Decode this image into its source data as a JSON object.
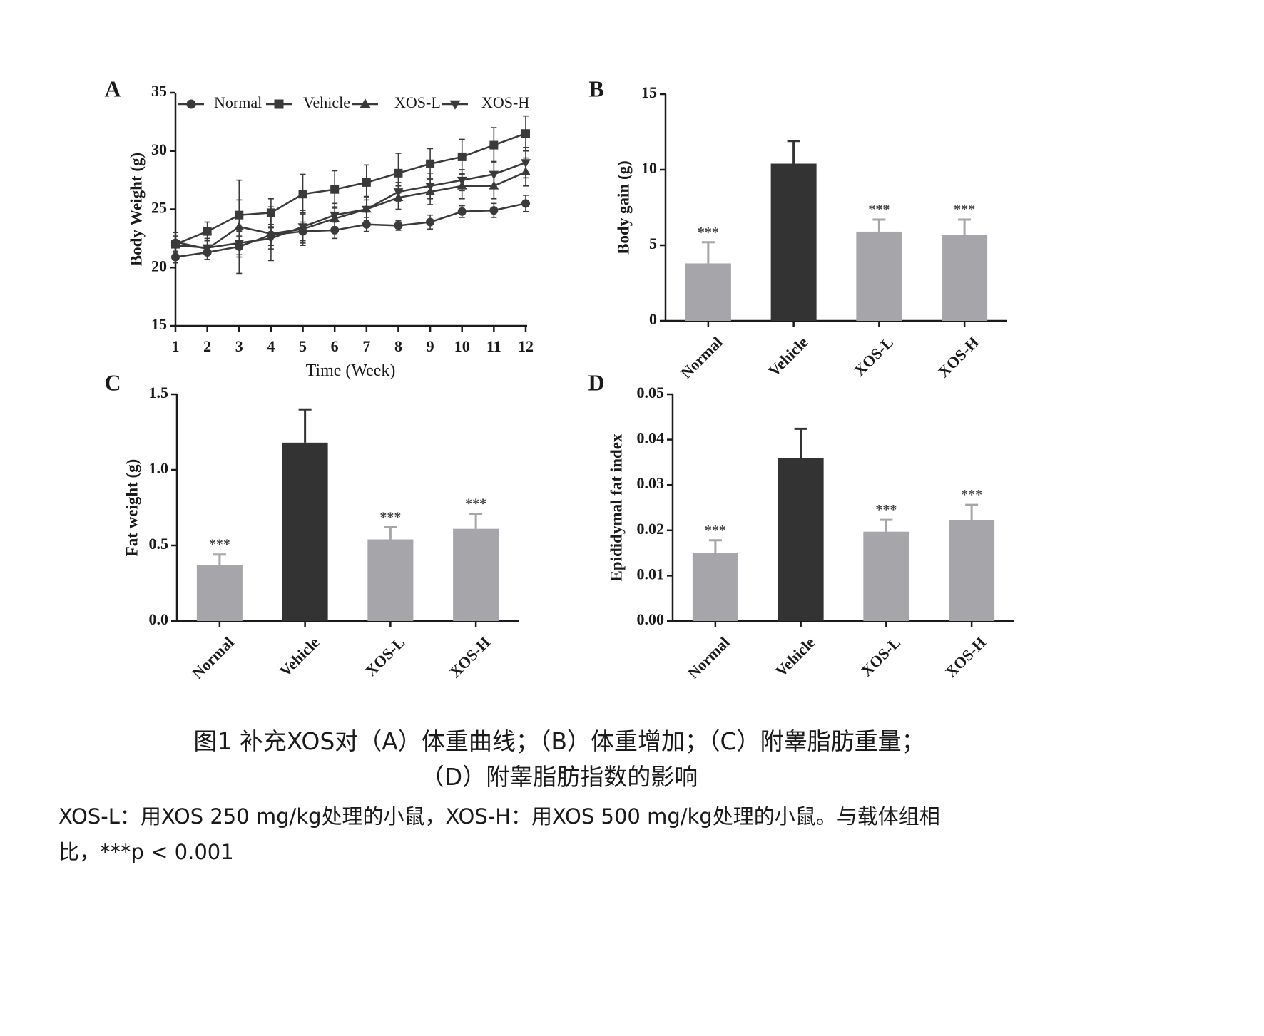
{
  "chart_data": [
    {
      "panel": "A",
      "type": "line",
      "xlabel": "Time (Week)",
      "ylabel": "Body Weight (g)",
      "x": [
        1,
        2,
        3,
        4,
        5,
        6,
        7,
        8,
        9,
        10,
        11,
        12
      ],
      "ylim": [
        15,
        35
      ],
      "yticks": [
        15,
        20,
        25,
        30,
        35
      ],
      "legend_position": "top",
      "grid": false,
      "series": [
        {
          "name": "Normal",
          "marker": "circle",
          "values": [
            20.9,
            21.3,
            21.8,
            22.8,
            23.1,
            23.2,
            23.7,
            23.6,
            23.9,
            24.8,
            24.9,
            25.5
          ],
          "errors": [
            0.5,
            0.6,
            0.9,
            0.9,
            0.8,
            0.7,
            0.6,
            0.4,
            0.6,
            0.5,
            0.6,
            0.7
          ]
        },
        {
          "name": "Vehicle",
          "marker": "square",
          "values": [
            22.0,
            23.1,
            24.5,
            24.7,
            26.3,
            26.7,
            27.3,
            28.1,
            28.9,
            29.5,
            30.5,
            31.5
          ],
          "errors": [
            0.7,
            0.8,
            1.3,
            1.2,
            1.7,
            1.6,
            1.5,
            1.7,
            1.3,
            1.5,
            1.5,
            1.5
          ]
        },
        {
          "name": "XOS-L",
          "marker": "triangle-up",
          "values": [
            22.2,
            21.6,
            23.5,
            22.9,
            23.3,
            24.2,
            25.0,
            26.0,
            26.5,
            27.0,
            27.0,
            28.2
          ],
          "errors": [
            0.8,
            0.9,
            4.0,
            2.3,
            1.4,
            1.0,
            1.1,
            1.0,
            1.1,
            1.1,
            1.1,
            1.2
          ]
        },
        {
          "name": "XOS-H",
          "marker": "triangle-down",
          "values": [
            21.9,
            21.7,
            22.1,
            22.5,
            23.5,
            24.5,
            25.0,
            26.5,
            27.0,
            27.5,
            28.0,
            29.0
          ],
          "errors": [
            0.5,
            0.6,
            1.0,
            0.9,
            1.4,
            1.0,
            1.0,
            0.8,
            1.1,
            0.9,
            1.1,
            1.3
          ]
        }
      ]
    },
    {
      "panel": "B",
      "type": "bar",
      "ylabel": "Body gain (g)",
      "categories": [
        "Normal",
        "Vehicle",
        "XOS-L",
        "XOS-H"
      ],
      "values": [
        3.8,
        10.4,
        5.9,
        5.7
      ],
      "errors": [
        1.4,
        1.5,
        0.8,
        1.0
      ],
      "significance": [
        "***",
        "",
        "***",
        "***"
      ],
      "ylim": [
        0,
        15
      ],
      "yticks": [
        0,
        5,
        10,
        15
      ],
      "bar_colors": [
        "#a5a5aa",
        "#333333",
        "#a5a5aa",
        "#a5a5aa"
      ]
    },
    {
      "panel": "C",
      "type": "bar",
      "ylabel": "Fat weight (g)",
      "categories": [
        "Normal",
        "Vehicle",
        "XOS-L",
        "XOS-H"
      ],
      "values": [
        0.37,
        1.18,
        0.54,
        0.61
      ],
      "errors": [
        0.07,
        0.22,
        0.08,
        0.1
      ],
      "significance": [
        "***",
        "",
        "***",
        "***"
      ],
      "ylim": [
        0,
        1.5
      ],
      "yticks": [
        0.0,
        0.5,
        1.0,
        1.5
      ],
      "bar_colors": [
        "#a5a5aa",
        "#333333",
        "#a5a5aa",
        "#a5a5aa"
      ]
    },
    {
      "panel": "D",
      "type": "bar",
      "ylabel": "Epididymal fat index",
      "categories": [
        "Normal",
        "Vehicle",
        "XOS-L",
        "XOS-H"
      ],
      "values": [
        0.015,
        0.036,
        0.0197,
        0.0223
      ],
      "errors": [
        0.0028,
        0.0064,
        0.0026,
        0.0033
      ],
      "significance": [
        "***",
        "",
        "***",
        "***"
      ],
      "ylim": [
        0,
        0.05
      ],
      "yticks": [
        0.0,
        0.01,
        0.02,
        0.03,
        0.04,
        0.05
      ],
      "bar_colors": [
        "#a5a5aa",
        "#333333",
        "#a5a5aa",
        "#a5a5aa"
      ]
    }
  ],
  "panel_labels": [
    "A",
    "B",
    "C",
    "D"
  ],
  "caption": {
    "line1": "图1 补充XOS对（A）体重曲线；（B）体重增加；（C）附睾脂肪重量；",
    "line2": "（D）附睾脂肪指数的影响",
    "note_line1": "XOS-L：用XOS 250 mg/kg处理的小鼠，XOS-H：用XOS 500 mg/kg处理的小鼠。与载体组相",
    "note_line2": "比，***p < 0.001"
  },
  "colors": {
    "line": "#3a3a3a",
    "axis": "#1a1a1a",
    "bar_light": "#a5a5aa",
    "bar_dark": "#333333",
    "text": "#1a1a1a"
  }
}
